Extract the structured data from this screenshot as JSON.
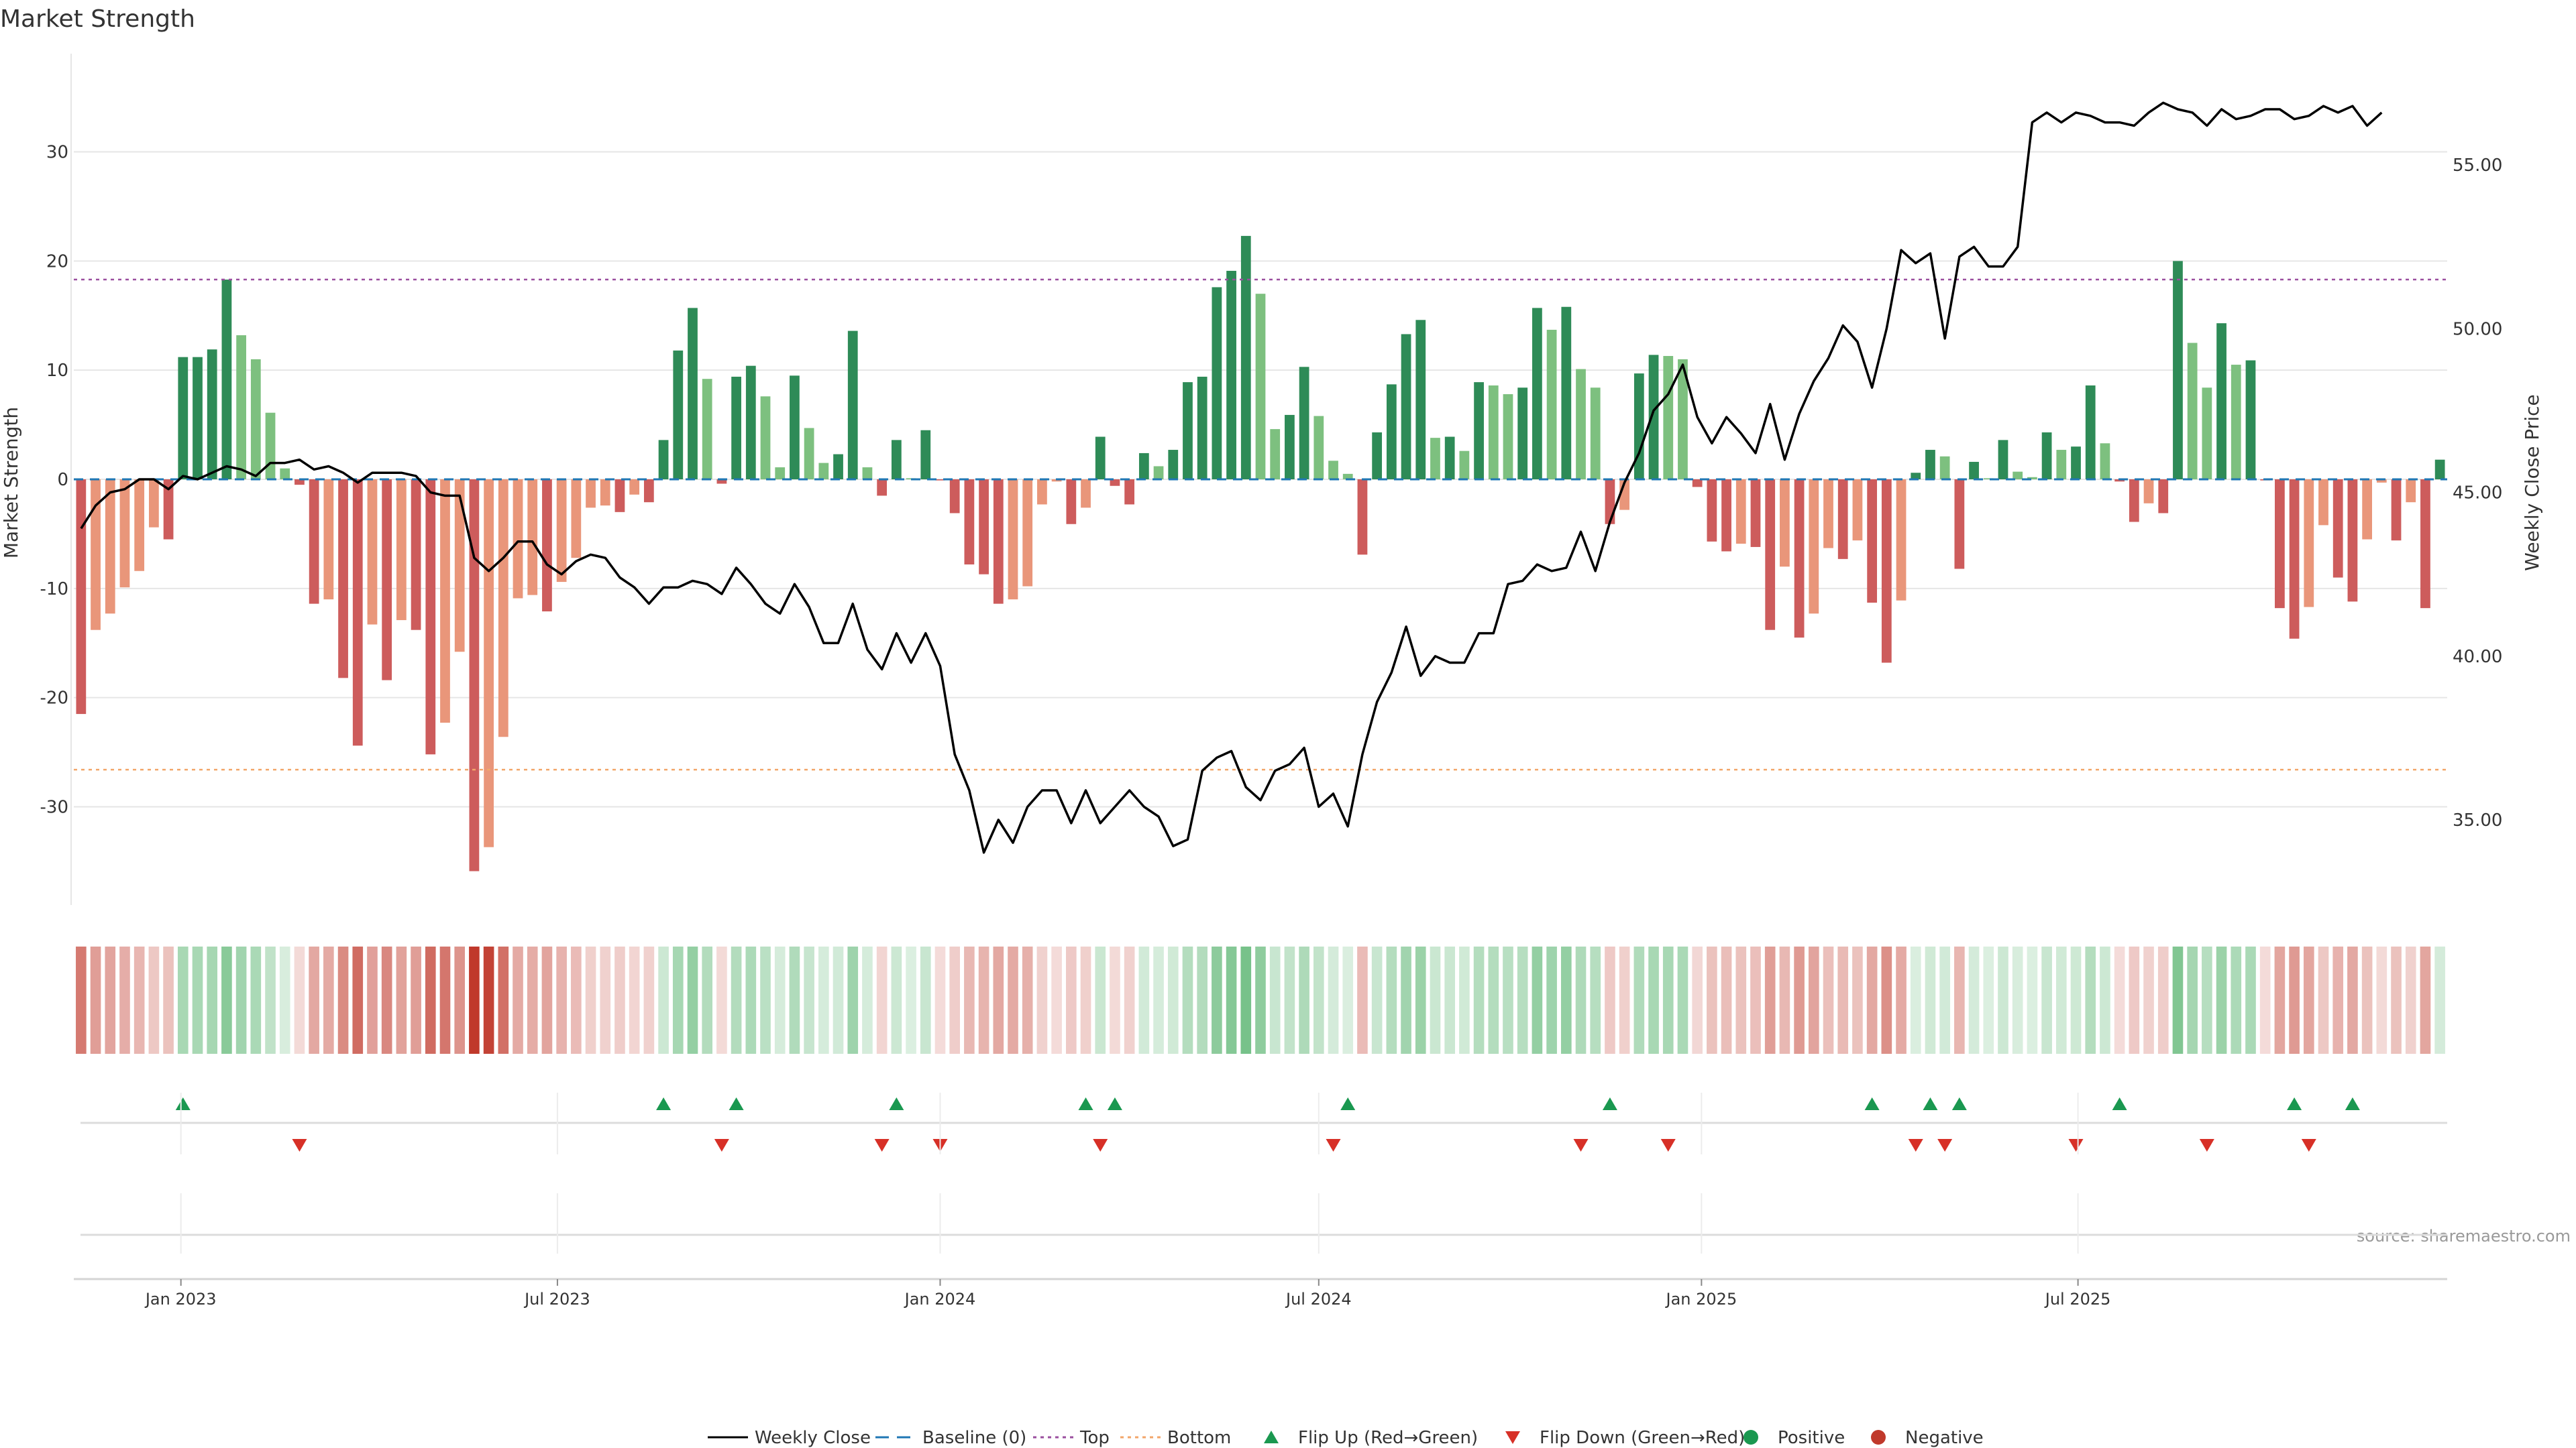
{
  "chart_data": {
    "type": "bar",
    "title": "Market Strength",
    "ylabel": "Market Strength",
    "y2label": "Weekly Close Price",
    "source": "source: sharemaestro.com",
    "ylim": [
      -39,
      39
    ],
    "y2lim": [
      32.4,
      58.4
    ],
    "yticks": [
      30,
      20,
      10,
      0,
      -10,
      -20,
      -30
    ],
    "y2ticks": [
      "55.00",
      "50.00",
      "45.00",
      "40.00",
      "35.00"
    ],
    "top_threshold": 18.3,
    "bottom_threshold": -26.6,
    "x_start": "2022-11-14",
    "week_step_days": 7,
    "xticks": [
      {
        "label": "Jan 2023",
        "date": "2023-01-01"
      },
      {
        "label": "Jul 2023",
        "date": "2023-07-01"
      },
      {
        "label": "Jan 2024",
        "date": "2024-01-01"
      },
      {
        "label": "Jul 2024",
        "date": "2024-07-01"
      },
      {
        "label": "Jan 2025",
        "date": "2025-01-01"
      },
      {
        "label": "Jul 2025",
        "date": "2025-07-01"
      }
    ],
    "strength": [
      -21.5,
      -13.8,
      -12.3,
      -9.9,
      -8.4,
      -4.4,
      -5.5,
      11.2,
      11.2,
      11.9,
      18.3,
      13.2,
      11.0,
      6.1,
      1.0,
      -0.5,
      -11.4,
      -11.0,
      -18.2,
      -24.4,
      -13.3,
      -18.4,
      -12.9,
      -13.8,
      -25.2,
      -22.3,
      -15.8,
      -35.9,
      -33.7,
      -23.6,
      -10.9,
      -10.6,
      -12.1,
      -9.4,
      -7.2,
      -2.6,
      -2.4,
      -3.0,
      -1.4,
      -2.1,
      3.6,
      11.8,
      15.7,
      9.2,
      -0.4,
      9.4,
      10.4,
      7.6,
      1.1,
      9.5,
      4.7,
      1.5,
      2.3,
      13.6,
      1.1,
      -1.5,
      3.6,
      0.1,
      4.5,
      -0.1,
      -3.1,
      -7.8,
      -8.7,
      -11.4,
      -11.0,
      -9.8,
      -2.3,
      -0.2,
      -4.1,
      -2.6,
      3.9,
      -0.6,
      -2.3,
      2.4,
      1.2,
      2.7,
      8.9,
      9.4,
      17.6,
      19.1,
      22.3,
      17.0,
      4.6,
      5.9,
      10.3,
      5.8,
      1.7,
      0.5,
      -6.9,
      4.3,
      8.7,
      13.3,
      14.6,
      3.8,
      3.9,
      2.6,
      8.9,
      8.6,
      7.8,
      8.4,
      15.7,
      13.7,
      15.8,
      10.1,
      8.4,
      -4.1,
      -2.8,
      9.7,
      11.4,
      11.3,
      11.0,
      -0.7,
      -5.7,
      -6.6,
      -5.9,
      -6.2,
      -13.8,
      -8.0,
      -14.5,
      -12.3,
      -6.3,
      -7.3,
      -5.6,
      -11.3,
      -16.8,
      -11.1,
      0.6,
      2.7,
      2.1,
      -8.2,
      1.6,
      0.1,
      3.6,
      0.7,
      0.2,
      4.3,
      2.7,
      3.0,
      8.6,
      3.3,
      -0.2,
      -3.9,
      -2.2,
      -3.1,
      20.0,
      12.5,
      8.4,
      14.3,
      10.5,
      10.9,
      -0.1,
      -11.8,
      -14.6,
      -11.7,
      -4.2,
      -9.0,
      -11.2,
      -5.5,
      -0.3,
      -5.6,
      -2.1,
      -11.8,
      1.8
    ],
    "weekly_close": [
      43.9,
      44.6,
      45.0,
      45.1,
      45.4,
      45.4,
      45.1,
      45.5,
      45.4,
      45.6,
      45.8,
      45.7,
      45.5,
      45.9,
      45.9,
      46.0,
      45.7,
      45.8,
      45.6,
      45.3,
      45.6,
      45.6,
      45.6,
      45.5,
      45.0,
      44.9,
      44.9,
      43.0,
      42.6,
      43.0,
      43.5,
      43.5,
      42.8,
      42.5,
      42.9,
      43.1,
      43.0,
      42.4,
      42.1,
      41.6,
      42.1,
      42.1,
      42.3,
      42.2,
      41.9,
      42.7,
      42.2,
      41.6,
      41.3,
      42.2,
      41.5,
      40.4,
      40.4,
      41.6,
      40.2,
      39.6,
      40.7,
      39.8,
      40.7,
      39.7,
      37.0,
      35.9,
      34.0,
      35.0,
      34.3,
      35.4,
      35.9,
      35.9,
      34.9,
      35.9,
      34.9,
      35.4,
      35.9,
      35.4,
      35.1,
      34.2,
      34.4,
      36.5,
      36.9,
      37.1,
      36.0,
      35.6,
      36.5,
      36.7,
      37.2,
      35.4,
      35.8,
      34.8,
      37.0,
      38.6,
      39.5,
      40.9,
      39.4,
      40.0,
      39.8,
      39.8,
      40.7,
      40.7,
      42.2,
      42.3,
      42.8,
      42.6,
      42.7,
      43.8,
      42.6,
      44.1,
      45.3,
      46.2,
      47.5,
      48.0,
      48.9,
      47.3,
      46.5,
      47.3,
      46.8,
      46.2,
      47.7,
      46.0,
      47.4,
      48.4,
      49.1,
      50.1,
      49.6,
      48.2,
      50.0,
      52.4,
      52.0,
      52.3,
      49.7,
      52.2,
      52.5,
      51.9,
      51.9,
      52.5,
      56.3,
      56.6,
      56.3,
      56.6,
      56.5,
      56.3,
      56.3,
      56.2,
      56.6,
      56.9,
      56.7,
      56.6,
      56.2,
      56.7,
      56.4,
      56.5,
      56.7,
      56.7,
      56.4,
      56.5,
      56.8,
      56.6,
      56.8,
      56.2,
      56.6
    ],
    "flip_up": [
      7,
      40,
      45,
      56,
      69,
      71,
      87,
      105,
      123,
      127,
      129,
      140,
      152,
      156
    ],
    "flip_down": [
      15,
      44,
      55,
      59,
      70,
      86,
      103,
      109,
      126,
      128,
      137,
      146,
      153
    ],
    "legend": [
      {
        "label": "Weekly Close",
        "marker": "line",
        "color": "#000000"
      },
      {
        "label": "Baseline (0)",
        "marker": "dash",
        "color": "#1f77b4"
      },
      {
        "label": "Top",
        "marker": "dot",
        "color": "#9b4f9f"
      },
      {
        "label": "Bottom",
        "marker": "dot",
        "color": "#f2a66a"
      },
      {
        "label": "Flip Up (Red→Green)",
        "marker": "up",
        "color": "#1a9850"
      },
      {
        "label": "Flip Down (Green→Red)",
        "marker": "down",
        "color": "#d73027"
      },
      {
        "label": "Positive",
        "marker": "circle",
        "color": "#1a9850"
      },
      {
        "label": "Negative",
        "marker": "circle",
        "color": "#c0392b"
      }
    ],
    "colors": {
      "strong_pos": "#2e8b57",
      "weak_pos": "#7dc07f",
      "strong_neg": "#cd5c5c",
      "weak_neg": "#e9967a",
      "flip_up": "#1a9850",
      "flip_down": "#d73027",
      "top": "#9b4f9f",
      "bottom": "#f2a66a",
      "baseline": "#1f77b4",
      "grid": "#e6e6e6",
      "axis": "#d4d4d4"
    }
  }
}
